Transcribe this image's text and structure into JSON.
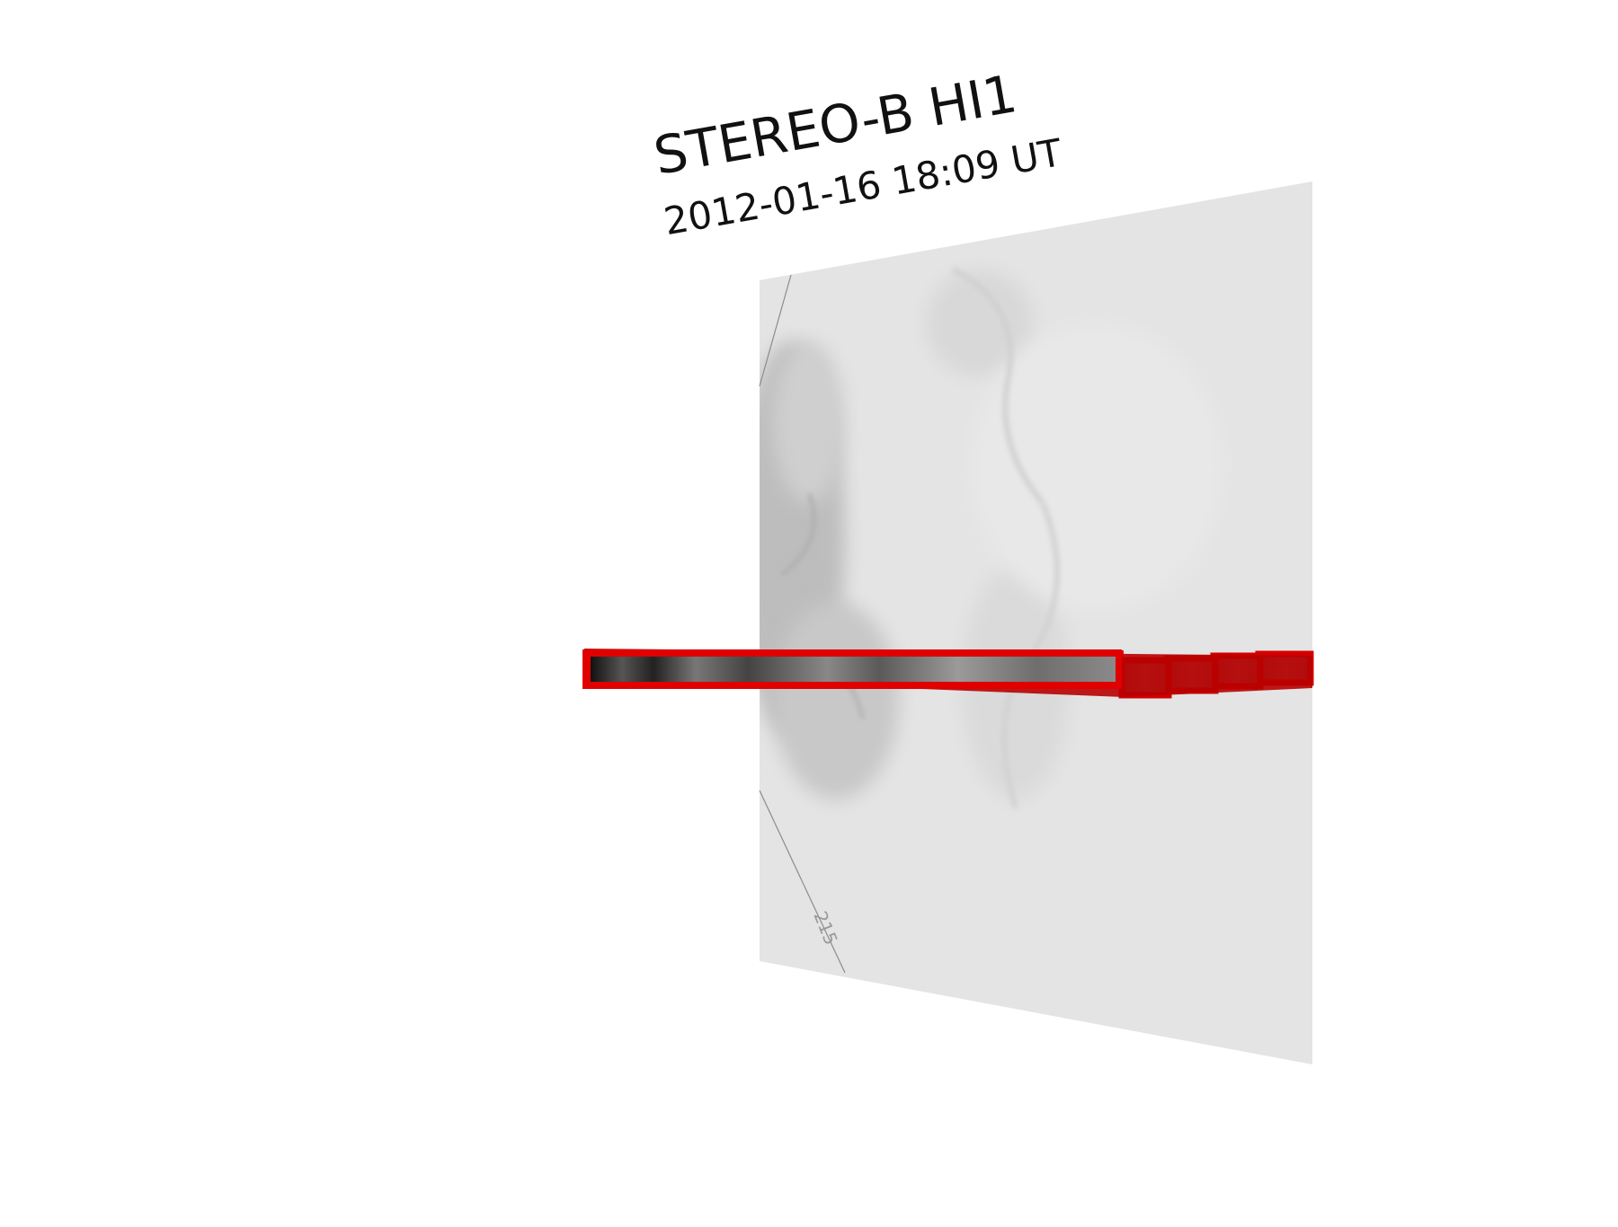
{
  "title": {
    "instrument": "STEREO-B HI1",
    "timestamp": "2012-01-16 18:09 UT"
  },
  "image_plane": {
    "grid_label": "215",
    "background_color": "#e4e4e4"
  },
  "colors": {
    "strip_frame": "#e00000",
    "strip_frame_dark": "#b80000"
  }
}
